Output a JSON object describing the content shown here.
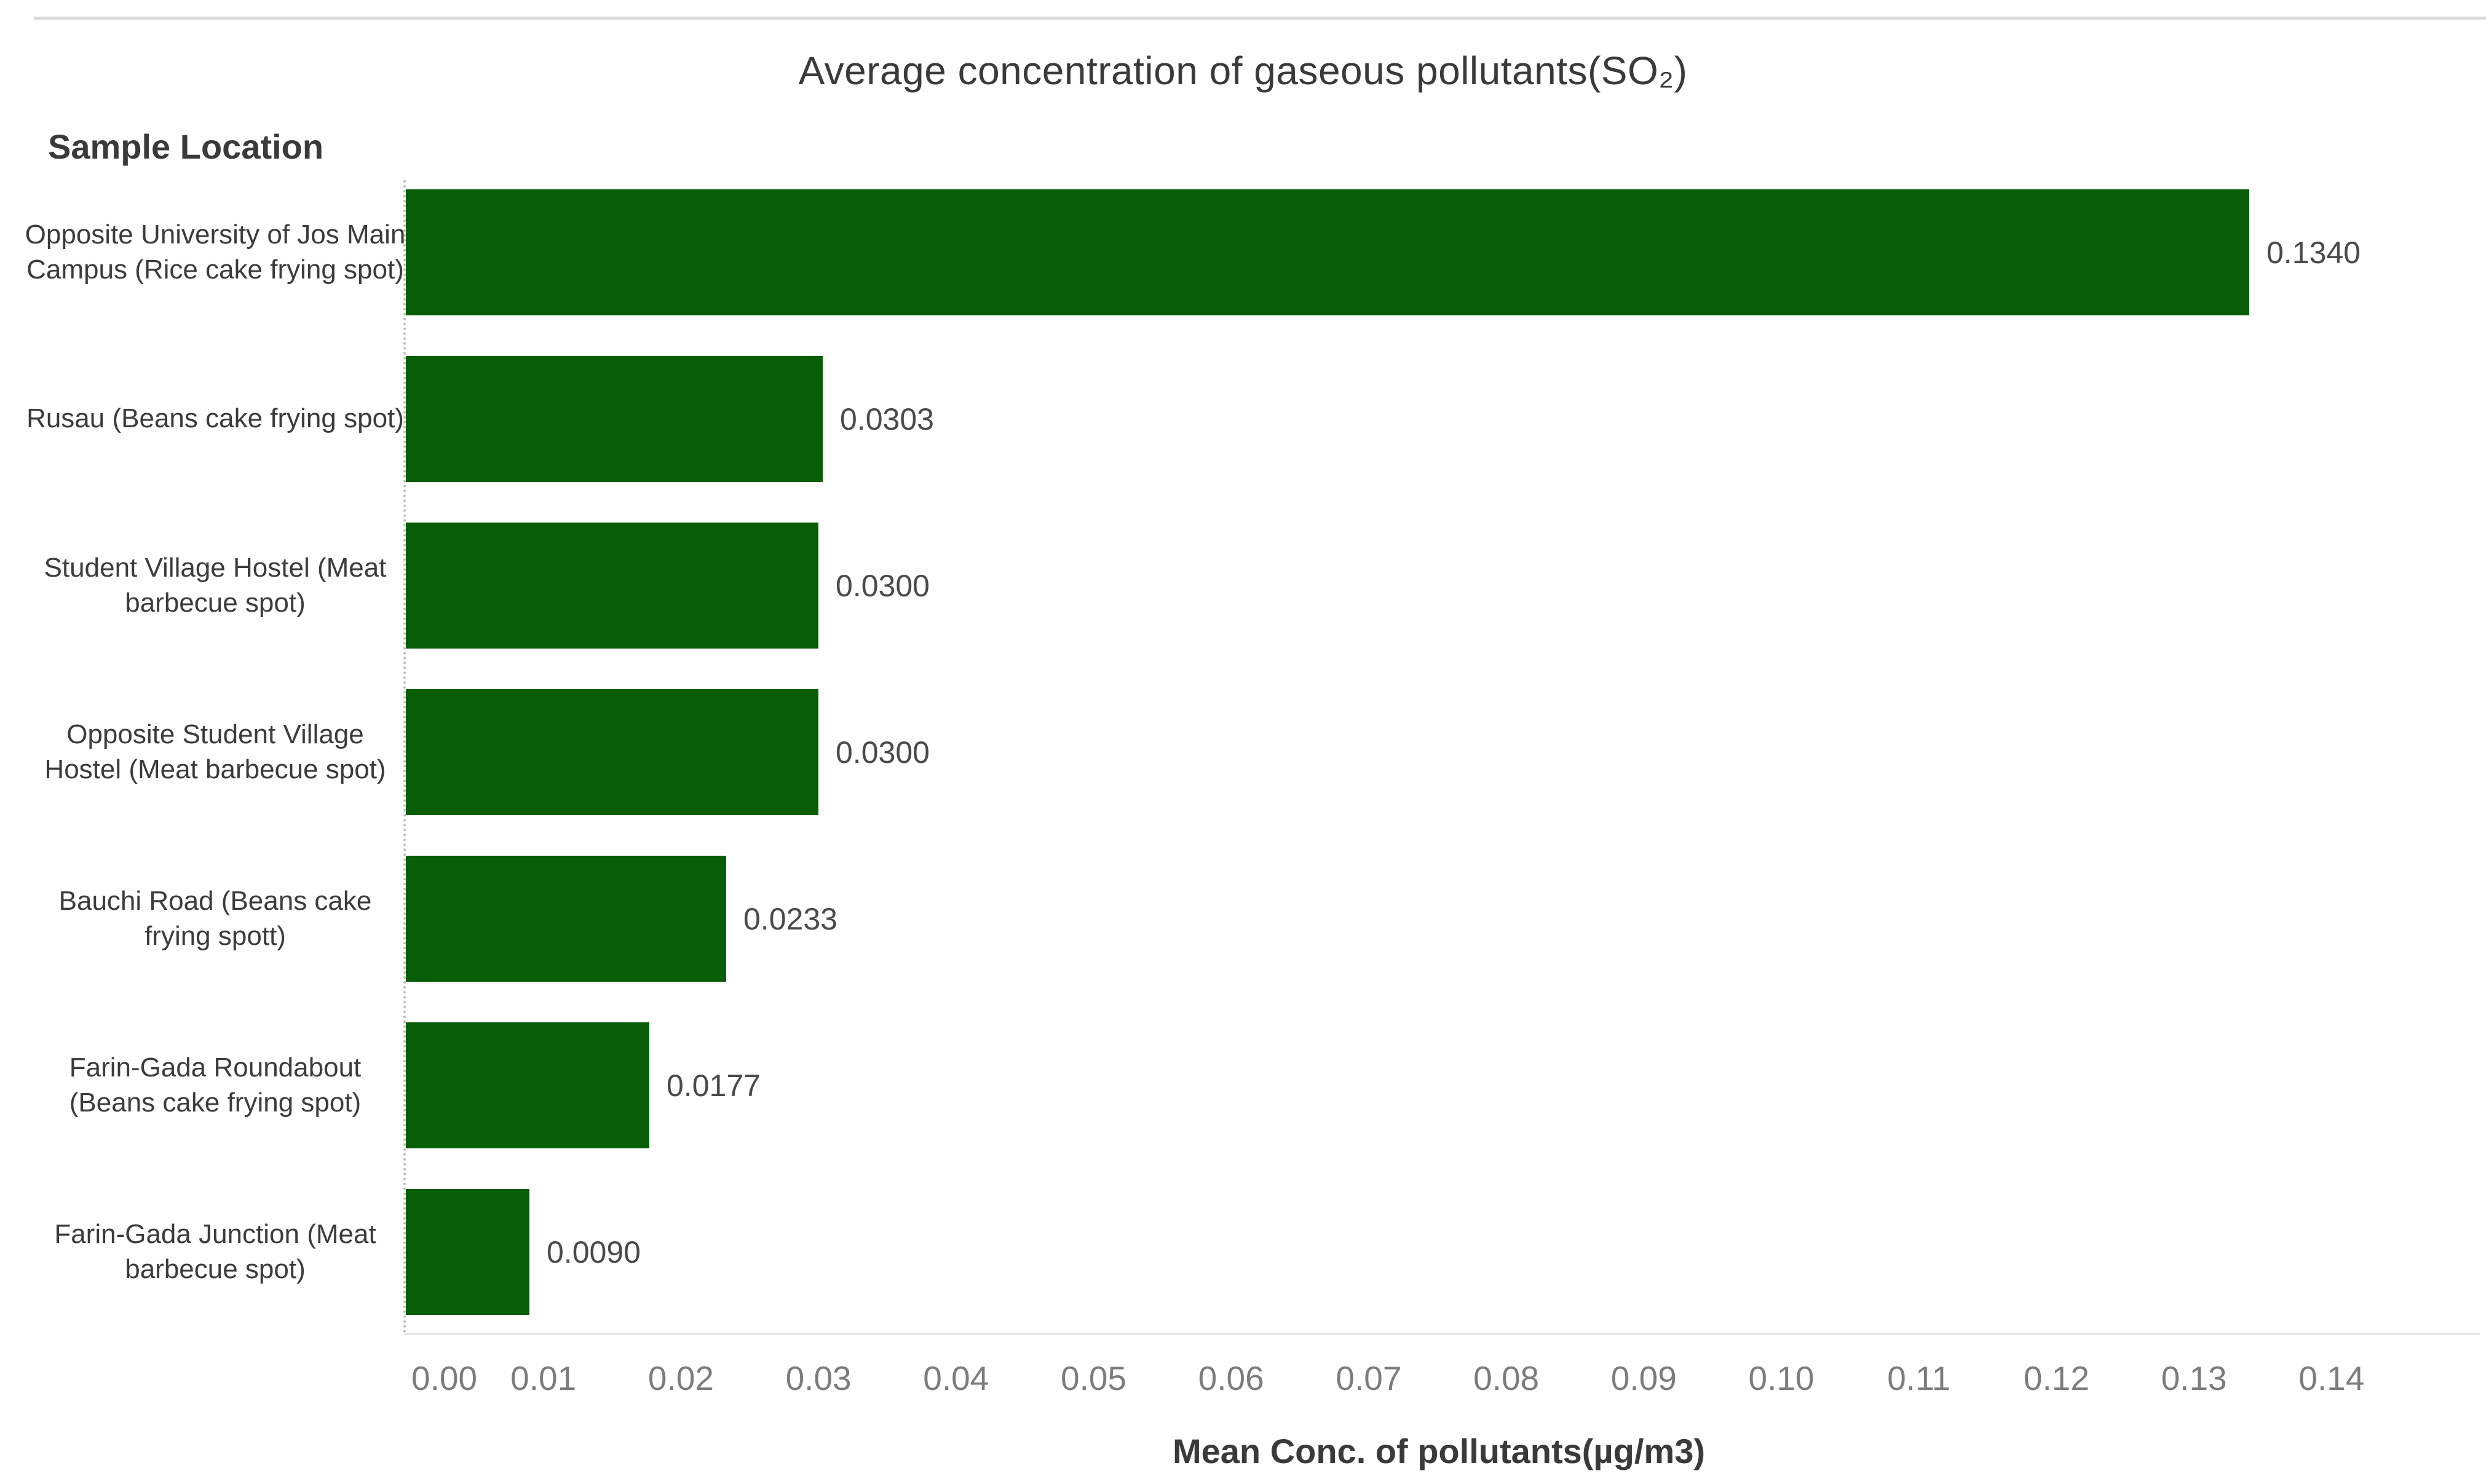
{
  "chart_data": {
    "type": "bar",
    "orientation": "horizontal",
    "title": "Average concentration of gaseous pollutants(SO₂)",
    "ylabel": "Sample Location",
    "xlabel": "Mean Conc. of pollutants(µg/m3)",
    "categories": [
      "Opposite University of Jos Main Campus (Rice cake frying spot)",
      "Rusau (Beans cake frying spot)",
      "Student Village Hostel (Meat barbecue spot)",
      "Opposite Student Village Hostel (Meat barbecue spot)",
      "Bauchi Road (Beans cake frying spott)",
      "Farin-Gada Roundabout (Beans cake frying spot)",
      "Farin-Gada Junction (Meat barbecue spot)"
    ],
    "values": [
      0.134,
      0.0303,
      0.03,
      0.03,
      0.0233,
      0.0177,
      0.009
    ],
    "value_labels": [
      "0.1340",
      "0.0303",
      "0.0300",
      "0.0300",
      "0.0233",
      "0.0177",
      "0.0090"
    ],
    "xticks": [
      "0.00",
      "0.01",
      "0.02",
      "0.03",
      "0.04",
      "0.05",
      "0.06",
      "0.07",
      "0.08",
      "0.09",
      "0.10",
      "0.11",
      "0.12",
      "0.13",
      "0.14"
    ],
    "xlim": [
      0,
      0.15
    ],
    "bar_color": "#075e07",
    "grid": false,
    "legend": false
  }
}
